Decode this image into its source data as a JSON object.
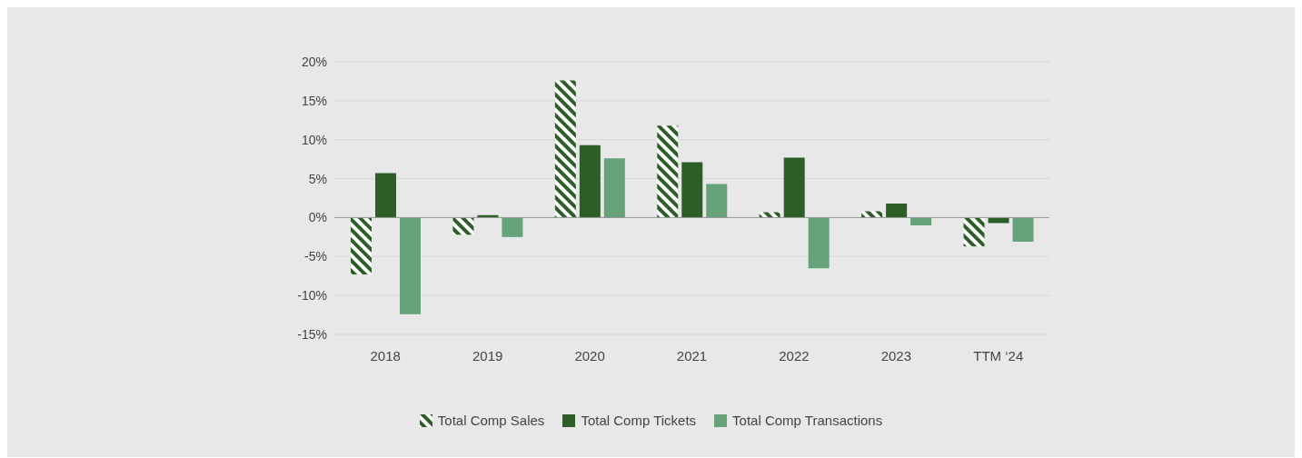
{
  "chart_data": {
    "type": "bar",
    "categories": [
      "2018",
      "2019",
      "2020",
      "2021",
      "2022",
      "2023",
      "TTM ‘24"
    ],
    "series": [
      {
        "name": "Total Comp Sales",
        "color": "#2d5e28",
        "values": [
          -7.3,
          -2.2,
          17.6,
          11.8,
          0.7,
          0.8,
          -3.7
        ]
      },
      {
        "name": "Total Comp Tickets",
        "color": "#2d5e28",
        "values": [
          5.7,
          0.3,
          9.3,
          7.1,
          7.7,
          1.8,
          -0.7
        ]
      },
      {
        "name": "Total Comp Transactions",
        "color": "#66a37a",
        "values": [
          -12.4,
          -2.5,
          7.6,
          4.3,
          -6.5,
          -1.0,
          -3.1
        ]
      }
    ],
    "ylim": [
      -15,
      20
    ],
    "yticks": [
      {
        "value": -15,
        "label": "-15%"
      },
      {
        "value": -10,
        "label": "-10%"
      },
      {
        "value": -5,
        "label": "-5%"
      },
      {
        "value": 0,
        "label": "0%"
      },
      {
        "value": 5,
        "label": "5%"
      },
      {
        "value": 10,
        "label": "10%"
      },
      {
        "value": 15,
        "label": "15%"
      },
      {
        "value": 20,
        "label": "20%"
      }
    ],
    "grid": "y",
    "legend": "bottom"
  }
}
